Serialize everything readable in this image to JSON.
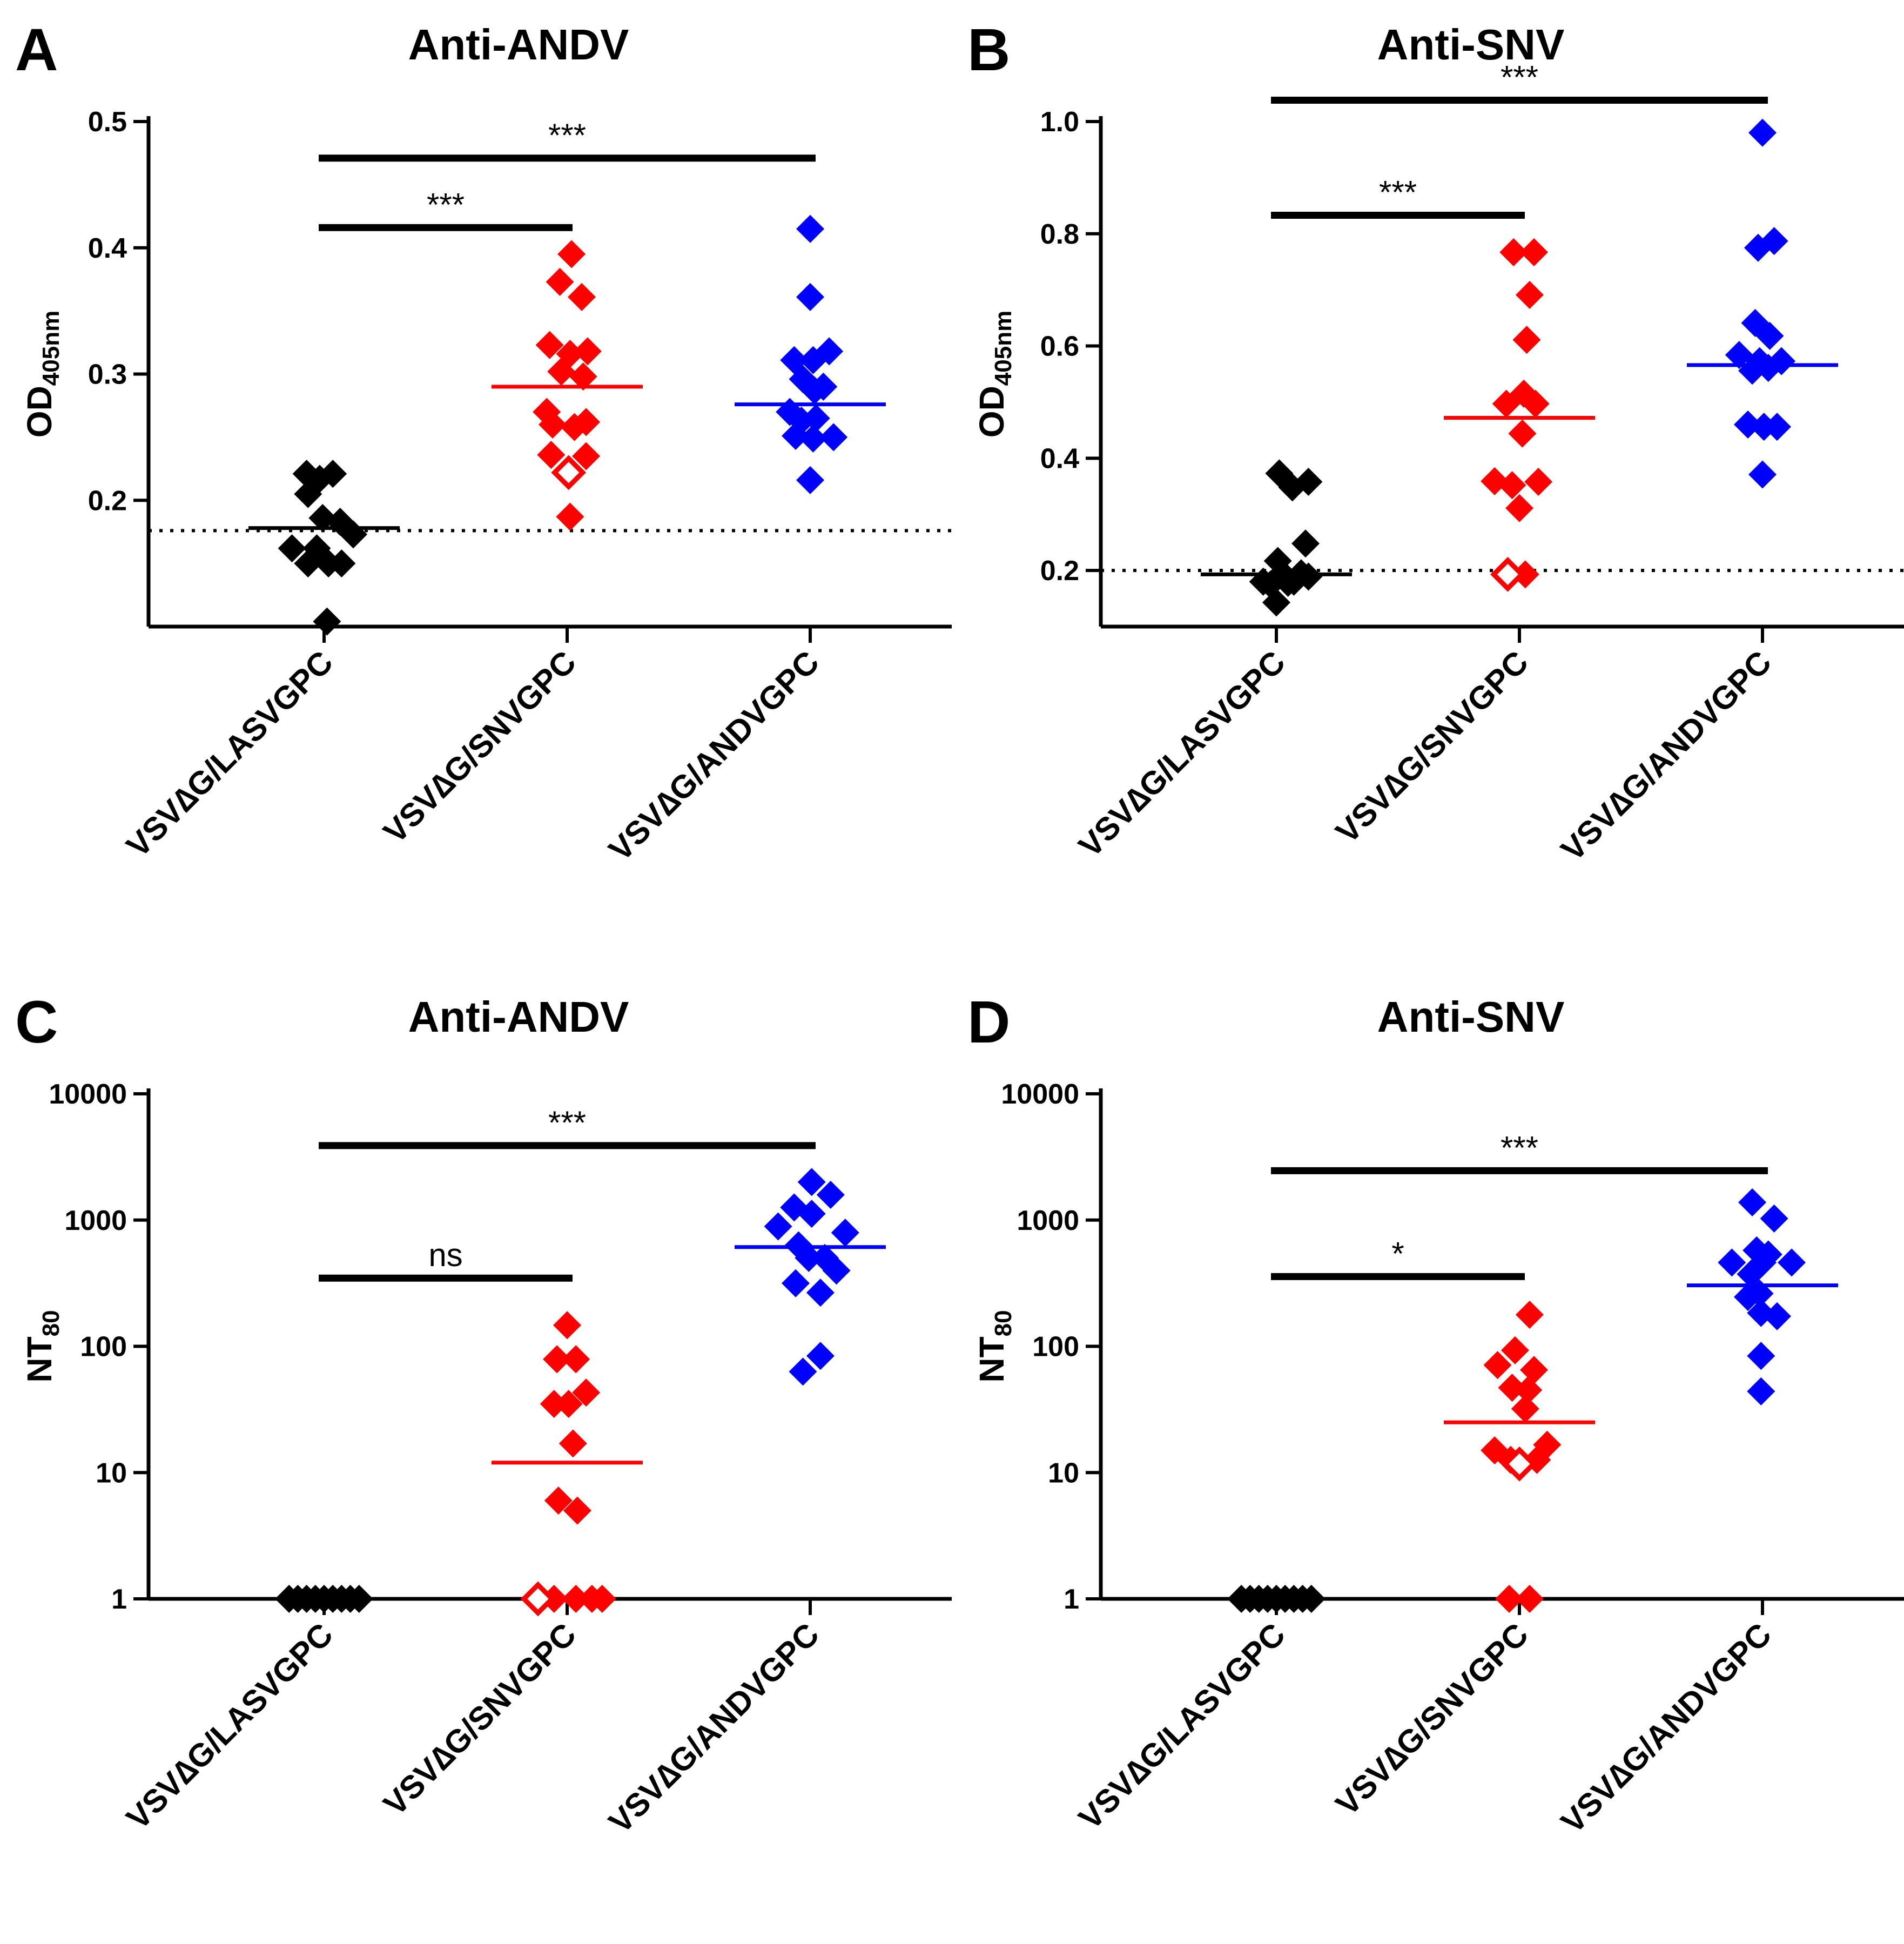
{
  "chart_data": [
    {
      "panel": "A",
      "type": "scatter",
      "title": "Anti-ANDV",
      "ylabel_main": "OD",
      "ylabel_sub": "405nm",
      "yscale": "linear",
      "ylim": [
        0.1,
        0.5
      ],
      "yticks": [
        0.2,
        0.3,
        0.4,
        0.5
      ],
      "ytick_labels": [
        "0.2",
        "0.3",
        "0.4",
        "0.5"
      ],
      "cutoff": 0.176,
      "categories": [
        "VSV∆G/LASVGPC",
        "VSV∆G/SNVGPC",
        "VSV∆G/ANDVGPC"
      ],
      "series": [
        {
          "name": "VSV∆G/LASVGPC",
          "color": "#000000",
          "median": 0.178,
          "points": [
            [
              -0.12,
              0.221
            ],
            [
              -0.03,
              0.217
            ],
            [
              0.06,
              0.221
            ],
            [
              -0.11,
              0.205
            ],
            [
              -0.01,
              0.186
            ],
            [
              0.11,
              0.183
            ],
            [
              -0.22,
              0.162
            ],
            [
              -0.05,
              0.162
            ],
            [
              0.2,
              0.173
            ],
            [
              -0.11,
              0.15
            ],
            [
              0.03,
              0.15
            ],
            [
              0.12,
              0.15
            ],
            [
              0.02,
              0.104
            ]
          ],
          "open_points": []
        },
        {
          "name": "VSV∆G/SNVGPC",
          "color": "#ff0000",
          "median": 0.29,
          "points": [
            [
              0.03,
              0.395
            ],
            [
              -0.05,
              0.373
            ],
            [
              0.1,
              0.361
            ],
            [
              -0.12,
              0.323
            ],
            [
              0.02,
              0.316
            ],
            [
              0.14,
              0.318
            ],
            [
              -0.04,
              0.302
            ],
            [
              0.11,
              0.298
            ],
            [
              -0.14,
              0.27
            ],
            [
              -0.1,
              0.26
            ],
            [
              0.05,
              0.258
            ],
            [
              0.13,
              0.262
            ],
            [
              -0.11,
              0.236
            ],
            [
              0.13,
              0.235
            ],
            [
              0.02,
              0.187
            ]
          ],
          "open_points": [
            [
              0.01,
              0.222
            ]
          ]
        },
        {
          "name": "VSV∆G/ANDVGPC",
          "color": "#0000ff",
          "median": 0.276,
          "points": [
            [
              0.0,
              0.415
            ],
            [
              0.0,
              0.361
            ],
            [
              -0.11,
              0.311
            ],
            [
              0.02,
              0.311
            ],
            [
              0.13,
              0.318
            ],
            [
              -0.05,
              0.296
            ],
            [
              0.03,
              0.287
            ],
            [
              0.09,
              0.29
            ],
            [
              -0.14,
              0.27
            ],
            [
              -0.06,
              0.263
            ],
            [
              0.04,
              0.265
            ],
            [
              -0.1,
              0.251
            ],
            [
              0.02,
              0.249
            ],
            [
              0.16,
              0.25
            ],
            [
              0.0,
              0.216
            ]
          ],
          "open_points": []
        }
      ],
      "significance": [
        {
          "label": "***",
          "from": 0,
          "to": 1,
          "y": 0.416
        },
        {
          "label": "***",
          "from": 0,
          "to": 2,
          "y": 0.471
        }
      ]
    },
    {
      "panel": "B",
      "type": "scatter",
      "title": "Anti-SNV",
      "ylabel_main": "OD",
      "ylabel_sub": "405nm",
      "yscale": "linear",
      "ylim": [
        0.1,
        1.0
      ],
      "yticks": [
        0.2,
        0.4,
        0.6,
        0.8,
        1.0
      ],
      "ytick_labels": [
        "0.2",
        "0.4",
        "0.6",
        "0.8",
        "1.0"
      ],
      "cutoff": 0.2,
      "categories": [
        "VSV∆G/LASVGPC",
        "VSV∆G/SNVGPC",
        "VSV∆G/ANDVGPC"
      ],
      "series": [
        {
          "name": "VSV∆G/LASVGPC",
          "color": "#000000",
          "median": 0.193,
          "points": [
            [
              0.02,
              0.373
            ],
            [
              0.11,
              0.348
            ],
            [
              0.22,
              0.358
            ],
            [
              0.2,
              0.248
            ],
            [
              0.01,
              0.217
            ],
            [
              -0.09,
              0.18
            ],
            [
              0.04,
              0.195
            ],
            [
              0.12,
              0.18
            ],
            [
              0.17,
              0.195
            ],
            [
              -0.04,
              0.175
            ],
            [
              0.08,
              0.178
            ],
            [
              0.22,
              0.189
            ],
            [
              0.0,
              0.143
            ]
          ],
          "open_points": []
        },
        {
          "name": "VSV∆G/SNVGPC",
          "color": "#ff0000",
          "median": 0.472,
          "points": [
            [
              -0.04,
              0.767
            ],
            [
              0.1,
              0.767
            ],
            [
              0.07,
              0.691
            ],
            [
              0.05,
              0.611
            ],
            [
              -0.09,
              0.497
            ],
            [
              0.03,
              0.515
            ],
            [
              0.11,
              0.497
            ],
            [
              0.02,
              0.444
            ],
            [
              -0.17,
              0.359
            ],
            [
              -0.05,
              0.352
            ],
            [
              0.13,
              0.358
            ],
            [
              0.0,
              0.311
            ],
            [
              0.04,
              0.193
            ]
          ],
          "open_points": [
            [
              -0.08,
              0.193
            ]
          ]
        },
        {
          "name": "VSV∆G/ANDVGPC",
          "color": "#0000ff",
          "median": 0.566,
          "points": [
            [
              0.0,
              0.98
            ],
            [
              -0.03,
              0.775
            ],
            [
              0.08,
              0.787
            ],
            [
              -0.05,
              0.641
            ],
            [
              0.05,
              0.618
            ],
            [
              -0.16,
              0.584
            ],
            [
              -0.02,
              0.573
            ],
            [
              0.04,
              0.561
            ],
            [
              0.13,
              0.573
            ],
            [
              -0.07,
              0.556
            ],
            [
              -0.1,
              0.46
            ],
            [
              0.01,
              0.456
            ],
            [
              0.1,
              0.456
            ],
            [
              0.0,
              0.371
            ]
          ],
          "open_points": []
        }
      ],
      "significance": [
        {
          "label": "***",
          "from": 0,
          "to": 1,
          "y": 0.833
        },
        {
          "label": "***",
          "from": 0,
          "to": 2,
          "y": 1.038
        }
      ]
    },
    {
      "panel": "C",
      "type": "scatter",
      "title": "Anti-ANDV",
      "ylabel_main": "NT",
      "ylabel_sub": "80",
      "yscale": "log",
      "ylim": [
        1,
        10000
      ],
      "yticks": [
        1,
        10,
        100,
        1000,
        10000
      ],
      "ytick_labels": [
        "1",
        "10",
        "100",
        "1000",
        "10000"
      ],
      "cutoff": null,
      "categories": [
        "VSV∆G/LASVGPC",
        "VSV∆G/SNVGPC",
        "VSV∆G/ANDVGPC"
      ],
      "series": [
        {
          "name": "VSV∆G/LASVGPC",
          "color": "#000000",
          "median": 1,
          "points": [
            [
              -0.24,
              1
            ],
            [
              -0.18,
              1
            ],
            [
              -0.12,
              1
            ],
            [
              -0.06,
              1
            ],
            [
              0.0,
              1
            ],
            [
              0.06,
              1
            ],
            [
              0.12,
              1
            ],
            [
              0.18,
              1
            ],
            [
              0.24,
              1
            ]
          ],
          "open_points": []
        },
        {
          "name": "VSV∆G/SNVGPC",
          "color": "#ff0000",
          "median": 12,
          "points": [
            [
              0.0,
              147
            ],
            [
              -0.07,
              79
            ],
            [
              0.06,
              79
            ],
            [
              -0.09,
              35
            ],
            [
              0.01,
              35
            ],
            [
              0.13,
              43
            ],
            [
              0.04,
              17
            ],
            [
              -0.06,
              6
            ],
            [
              0.07,
              5
            ],
            [
              0.06,
              1
            ],
            [
              0.17,
              1
            ],
            [
              0.24,
              1
            ],
            [
              -0.09,
              1
            ]
          ],
          "open_points": [
            [
              -0.2,
              1
            ]
          ]
        },
        {
          "name": "VSV∆G/ANDVGPC",
          "color": "#0000ff",
          "median": 611,
          "points": [
            [
              0.01,
              2000
            ],
            [
              0.14,
              1584
            ],
            [
              -0.11,
              1259
            ],
            [
              0.01,
              1122
            ],
            [
              -0.22,
              891
            ],
            [
              0.24,
              794
            ],
            [
              -0.08,
              631
            ],
            [
              -0.01,
              501
            ],
            [
              0.1,
              501
            ],
            [
              0.18,
              398
            ],
            [
              -0.1,
              316
            ],
            [
              0.07,
              266
            ],
            [
              0.07,
              84
            ],
            [
              -0.05,
              63
            ]
          ],
          "open_points": []
        }
      ],
      "significance": [
        {
          "label": "ns",
          "from": 0,
          "to": 1,
          "y": 347
        },
        {
          "label": "***",
          "from": 0,
          "to": 2,
          "y": 3890
        }
      ]
    },
    {
      "panel": "D",
      "type": "scatter",
      "title": "Anti-SNV",
      "ylabel_main": "NT",
      "ylabel_sub": "80",
      "yscale": "log",
      "ylim": [
        1,
        10000
      ],
      "yticks": [
        1,
        10,
        100,
        1000,
        10000
      ],
      "ytick_labels": [
        "1",
        "10",
        "100",
        "1000",
        "10000"
      ],
      "cutoff": null,
      "categories": [
        "VSV∆G/LASVGPC",
        "VSV∆G/SNVGPC",
        "VSV∆G/ANDVGPC"
      ],
      "series": [
        {
          "name": "VSV∆G/LASVGPC",
          "color": "#000000",
          "median": 1,
          "points": [
            [
              -0.24,
              1
            ],
            [
              -0.18,
              1
            ],
            [
              -0.12,
              1
            ],
            [
              -0.06,
              1
            ],
            [
              0.0,
              1
            ],
            [
              0.06,
              1
            ],
            [
              0.12,
              1
            ],
            [
              0.18,
              1
            ],
            [
              0.24,
              1
            ]
          ],
          "open_points": []
        },
        {
          "name": "VSV∆G/SNVGPC",
          "color": "#ff0000",
          "median": 25,
          "points": [
            [
              0.07,
              178
            ],
            [
              -0.03,
              93
            ],
            [
              -0.15,
              71
            ],
            [
              0.1,
              65
            ],
            [
              -0.05,
              47
            ],
            [
              0.06,
              45
            ],
            [
              0.04,
              32
            ],
            [
              -0.17,
              15
            ],
            [
              -0.06,
              12.6
            ],
            [
              0.12,
              12.6
            ],
            [
              0.19,
              16.6
            ],
            [
              -0.07,
              1
            ],
            [
              0.07,
              1
            ]
          ],
          "open_points": [
            [
              0.0,
              11.7
            ]
          ]
        },
        {
          "name": "VSV∆G/ANDVGPC",
          "color": "#0000ff",
          "median": 304,
          "points": [
            [
              -0.07,
              1380
            ],
            [
              0.08,
              1029
            ],
            [
              -0.04,
              575
            ],
            [
              0.04,
              534
            ],
            [
              -0.21,
              461
            ],
            [
              0.2,
              461
            ],
            [
              0.0,
              461
            ],
            [
              -0.08,
              373
            ],
            [
              -0.02,
              262
            ],
            [
              -0.1,
              246
            ],
            [
              -0.01,
              184
            ],
            [
              0.1,
              173
            ],
            [
              -0.01,
              84
            ],
            [
              -0.01,
              44
            ]
          ],
          "open_points": []
        }
      ],
      "significance": [
        {
          "label": "*",
          "from": 0,
          "to": 1,
          "y": 357
        },
        {
          "label": "***",
          "from": 0,
          "to": 2,
          "y": 2460
        }
      ]
    }
  ]
}
